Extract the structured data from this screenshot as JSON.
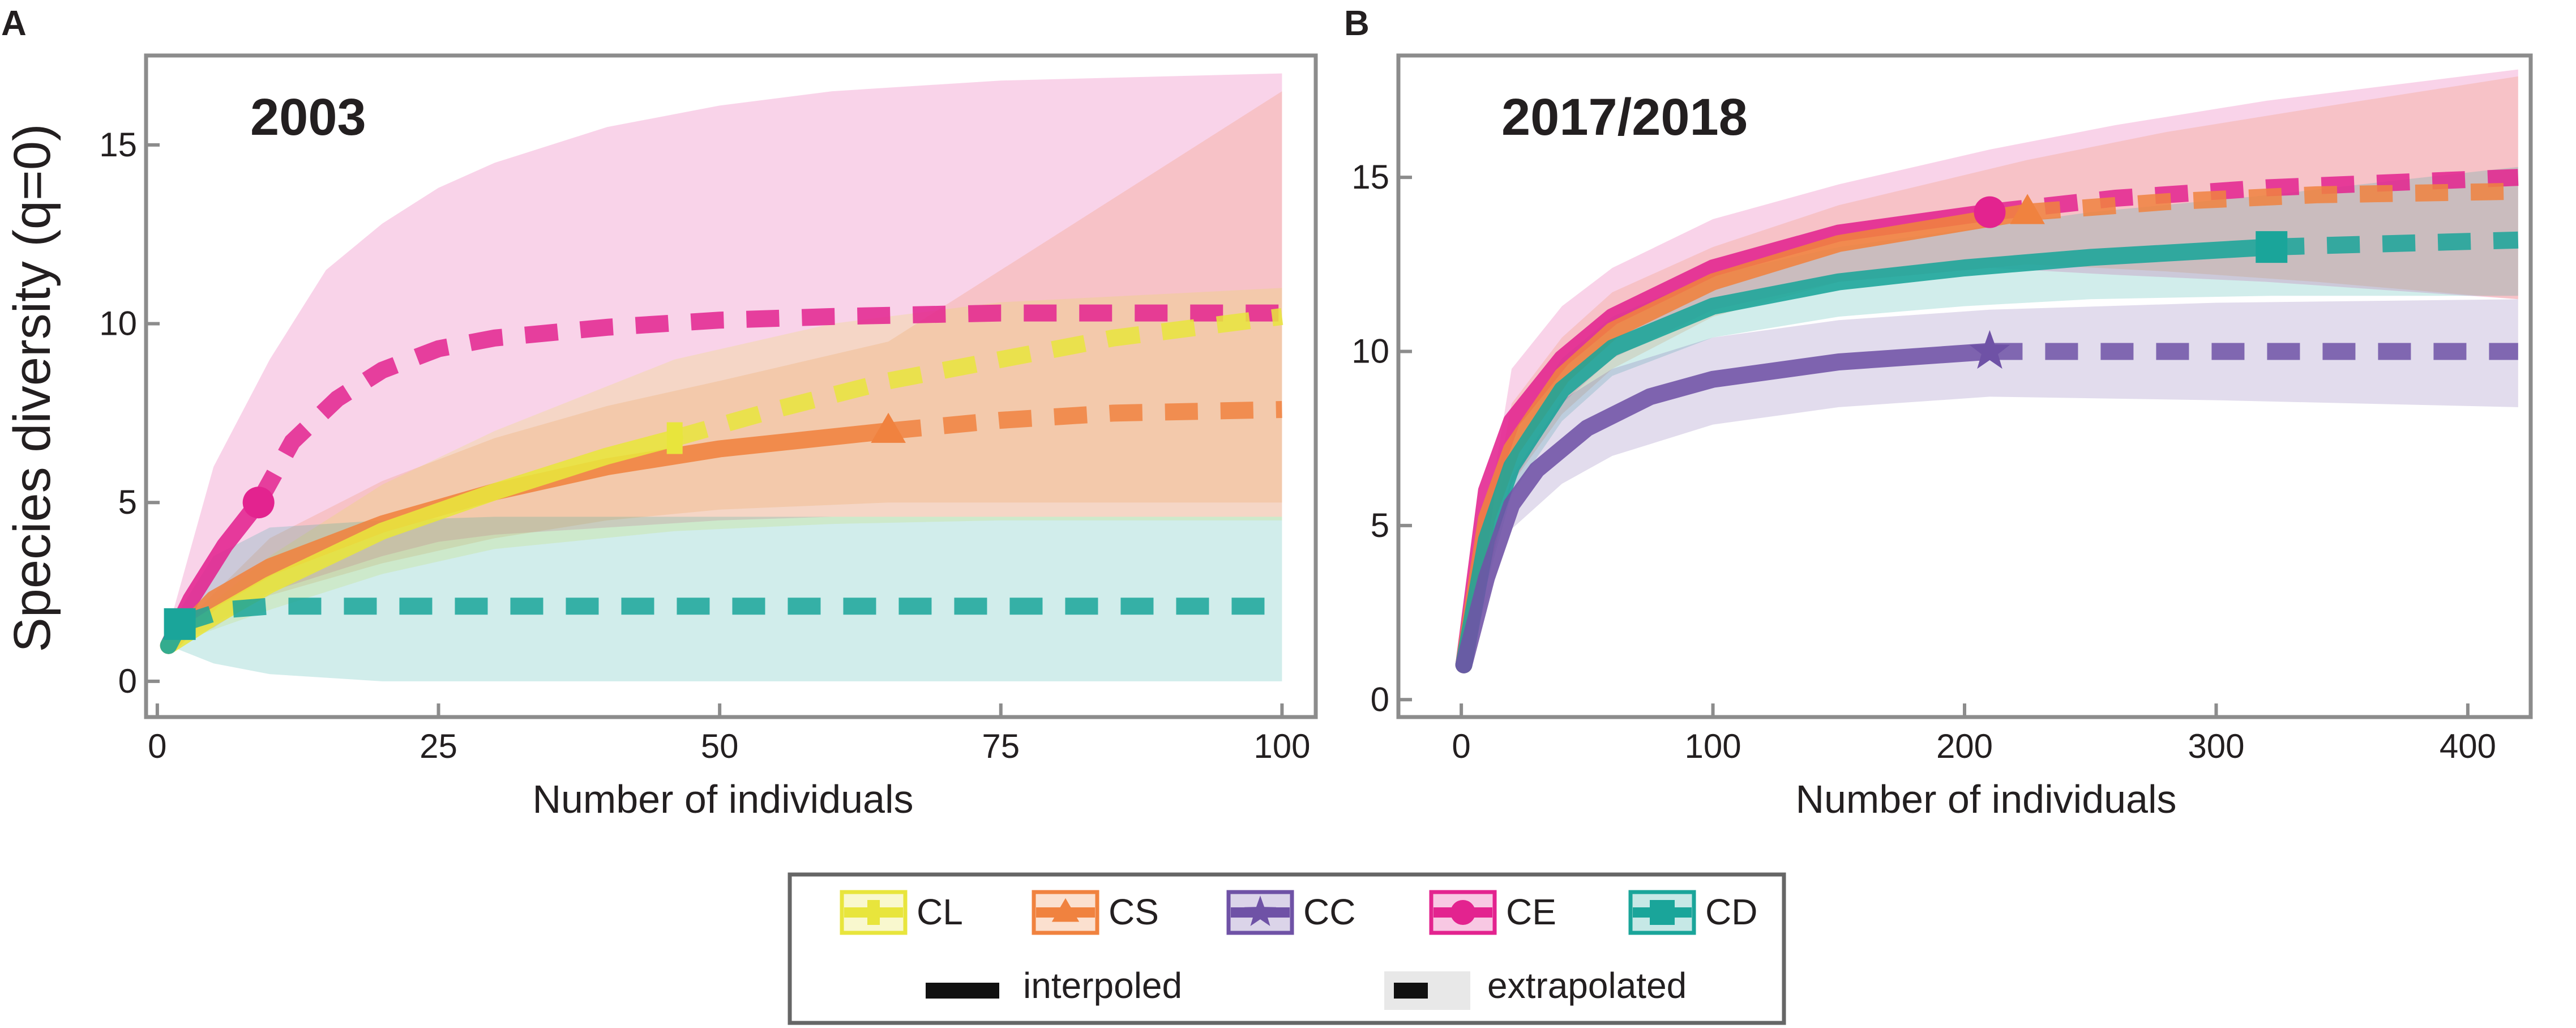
{
  "colors": {
    "CL": "#e8e53c",
    "CS": "#f0823f",
    "CC": "#6f52a6",
    "CE": "#e3238f",
    "CD": "#1aa59a",
    "frame": "#8c8c8c",
    "text": "#231f20"
  },
  "panels": {
    "A": {
      "letter": "A",
      "year": "2003"
    },
    "B": {
      "letter": "B",
      "year": "2017/2018"
    }
  },
  "axes": {
    "ylabel": "Species diversity (q=0)",
    "xlabel_A": "Number of individuals",
    "xlabel_B": "Number of individuals"
  },
  "legend": {
    "entries": [
      {
        "key": "CL",
        "label": "CL",
        "marker": "bar"
      },
      {
        "key": "CS",
        "label": "CS",
        "marker": "triangle"
      },
      {
        "key": "CC",
        "label": "CC",
        "marker": "star"
      },
      {
        "key": "CE",
        "label": "CE",
        "marker": "circle"
      },
      {
        "key": "CD",
        "label": "CD",
        "marker": "square"
      }
    ],
    "interpolated_label": "interpoled",
    "extrapolated_label": "extrapolated"
  },
  "chart_data": [
    {
      "type": "line",
      "panel": "A",
      "title": "2003",
      "xlabel": "Number of individuals",
      "ylabel": "Species diversity (q=0)",
      "xlim": [
        -1,
        103
      ],
      "ylim": [
        -1,
        17.5
      ],
      "xticks": [
        0,
        25,
        50,
        75,
        100
      ],
      "yticks": [
        0,
        5,
        10,
        15
      ],
      "series": [
        {
          "name": "CE",
          "marker": "circle",
          "ref": [
            9,
            5
          ],
          "interp": [
            [
              1,
              1.0
            ],
            [
              3,
              2.3
            ],
            [
              6,
              3.8
            ],
            [
              9,
              5.0
            ]
          ],
          "extrap": [
            [
              9,
              5.0
            ],
            [
              12,
              6.7
            ],
            [
              16,
              7.9
            ],
            [
              20,
              8.7
            ],
            [
              25,
              9.3
            ],
            [
              30,
              9.6
            ],
            [
              40,
              9.9
            ],
            [
              50,
              10.1
            ],
            [
              60,
              10.2
            ],
            [
              75,
              10.3
            ],
            [
              100,
              10.3
            ]
          ],
          "band": {
            "x": [
              1,
              5,
              10,
              15,
              20,
              25,
              30,
              40,
              50,
              60,
              75,
              100
            ],
            "lo": [
              1.0,
              1.5,
              2.5,
              3.0,
              3.5,
              3.9,
              4.1,
              4.3,
              4.5,
              4.6,
              4.6,
              4.6
            ],
            "hi": [
              1.5,
              6.0,
              9.0,
              11.5,
              12.8,
              13.8,
              14.5,
              15.5,
              16.1,
              16.5,
              16.8,
              17.0
            ]
          }
        },
        {
          "name": "CS",
          "marker": "triangle",
          "ref": [
            65,
            7
          ],
          "interp": [
            [
              1,
              1.0
            ],
            [
              5,
              2.3
            ],
            [
              10,
              3.2
            ],
            [
              20,
              4.4
            ],
            [
              30,
              5.3
            ],
            [
              40,
              6.0
            ],
            [
              50,
              6.5
            ],
            [
              65,
              7.0
            ]
          ],
          "extrap": [
            [
              65,
              7.0
            ],
            [
              75,
              7.3
            ],
            [
              85,
              7.5
            ],
            [
              100,
              7.6
            ]
          ],
          "band": {
            "x": [
              1,
              10,
              20,
              30,
              40,
              50,
              65,
              75,
              100
            ],
            "lo": [
              1.0,
              2.4,
              3.3,
              4.0,
              4.5,
              4.8,
              5.0,
              5.0,
              5.0
            ],
            "hi": [
              1.2,
              4.0,
              5.6,
              6.8,
              7.7,
              8.4,
              9.5,
              11.5,
              16.5
            ]
          }
        },
        {
          "name": "CL",
          "marker": "bar",
          "ref": [
            46,
            6.8
          ],
          "interp": [
            [
              1,
              1.0
            ],
            [
              5,
              1.8
            ],
            [
              10,
              2.7
            ],
            [
              20,
              4.2
            ],
            [
              30,
              5.3
            ],
            [
              40,
              6.3
            ],
            [
              46,
              6.8
            ]
          ],
          "extrap": [
            [
              46,
              6.8
            ],
            [
              55,
              7.6
            ],
            [
              65,
              8.4
            ],
            [
              75,
              9.0
            ],
            [
              85,
              9.6
            ],
            [
              100,
              10.2
            ]
          ],
          "band": {
            "x": [
              1,
              10,
              20,
              30,
              46,
              60,
              75,
              100
            ],
            "lo": [
              1.0,
              2.0,
              3.0,
              3.7,
              4.2,
              4.4,
              4.5,
              4.5
            ],
            "hi": [
              1.2,
              3.5,
              5.5,
              7.0,
              9.0,
              10.0,
              10.6,
              11.0
            ]
          }
        },
        {
          "name": "CD",
          "marker": "square",
          "ref": [
            2,
            1.6
          ],
          "interp": [
            [
              1,
              1.0
            ],
            [
              2,
              1.6
            ]
          ],
          "extrap": [
            [
              2,
              1.6
            ],
            [
              6,
              2.0
            ],
            [
              10,
              2.1
            ],
            [
              20,
              2.1
            ],
            [
              50,
              2.1
            ],
            [
              75,
              2.1
            ],
            [
              100,
              2.1
            ]
          ],
          "band": {
            "x": [
              1,
              5,
              10,
              20,
              30,
              50,
              75,
              100
            ],
            "lo": [
              1.0,
              0.5,
              0.2,
              0.0,
              0.0,
              0.0,
              0.0,
              0.0
            ],
            "hi": [
              1.5,
              3.5,
              4.3,
              4.5,
              4.6,
              4.6,
              4.6,
              4.6
            ]
          }
        }
      ]
    },
    {
      "type": "line",
      "panel": "B",
      "title": "2017/2018",
      "xlabel": "Number of individuals",
      "ylabel": "",
      "xlim": [
        -25,
        425
      ],
      "ylim": [
        -0.5,
        18.5
      ],
      "xticks": [
        0,
        100,
        200,
        300,
        400
      ],
      "yticks": [
        0,
        5,
        10,
        15
      ],
      "series": [
        {
          "name": "CE",
          "marker": "circle",
          "ref": [
            210,
            14
          ],
          "interp": [
            [
              1,
              1.0
            ],
            [
              10,
              6.0
            ],
            [
              20,
              8.0
            ],
            [
              40,
              9.8
            ],
            [
              60,
              11.0
            ],
            [
              100,
              12.4
            ],
            [
              150,
              13.4
            ],
            [
              210,
              14.0
            ]
          ],
          "extrap": [
            [
              210,
              14.0
            ],
            [
              260,
              14.4
            ],
            [
              320,
              14.7
            ],
            [
              420,
              15.0
            ]
          ],
          "band": {
            "x": [
              1,
              20,
              40,
              60,
              100,
              150,
              210,
              260,
              320,
              420
            ],
            "lo": [
              0.9,
              6.2,
              8.5,
              9.8,
              11.2,
              12.0,
              12.4,
              12.2,
              12.0,
              11.5
            ],
            "hi": [
              1.1,
              9.5,
              11.3,
              12.4,
              13.8,
              14.8,
              15.8,
              16.5,
              17.2,
              18.1
            ]
          }
        },
        {
          "name": "CS",
          "marker": "triangle",
          "ref": [
            225,
            14
          ],
          "interp": [
            [
              1,
              1.0
            ],
            [
              10,
              5.2
            ],
            [
              20,
              7.2
            ],
            [
              40,
              9.3
            ],
            [
              60,
              10.6
            ],
            [
              100,
              12.0
            ],
            [
              150,
              13.1
            ],
            [
              225,
              14.0
            ]
          ],
          "extrap": [
            [
              225,
              14.0
            ],
            [
              280,
              14.3
            ],
            [
              340,
              14.5
            ],
            [
              420,
              14.6
            ]
          ],
          "band": {
            "x": [
              1,
              20,
              40,
              60,
              100,
              150,
              225,
              280,
              340,
              420
            ],
            "lo": [
              0.9,
              6.2,
              8.2,
              9.5,
              11.0,
              12.0,
              12.5,
              12.3,
              12.0,
              11.5
            ],
            "hi": [
              1.1,
              8.5,
              10.4,
              11.7,
              13.0,
              14.2,
              15.5,
              16.3,
              17.0,
              17.9
            ]
          }
        },
        {
          "name": "CD",
          "marker": "square",
          "ref": [
            322,
            13
          ],
          "interp": [
            [
              1,
              1.0
            ],
            [
              10,
              4.6
            ],
            [
              20,
              6.7
            ],
            [
              40,
              8.9
            ],
            [
              60,
              10.1
            ],
            [
              100,
              11.3
            ],
            [
              150,
              12.0
            ],
            [
              200,
              12.4
            ],
            [
              250,
              12.7
            ],
            [
              322,
              13.0
            ]
          ],
          "extrap": [
            [
              322,
              13.0
            ],
            [
              370,
              13.1
            ],
            [
              420,
              13.2
            ]
          ],
          "band": {
            "x": [
              1,
              20,
              40,
              60,
              100,
              150,
              200,
              250,
              322,
              370,
              420
            ],
            "lo": [
              0.9,
              5.9,
              8.0,
              9.3,
              10.4,
              11.0,
              11.3,
              11.5,
              11.6,
              11.6,
              11.6
            ],
            "hi": [
              1.1,
              7.5,
              9.8,
              11.0,
              12.2,
              13.0,
              13.5,
              14.0,
              14.5,
              14.9,
              15.3
            ]
          }
        },
        {
          "name": "CC",
          "marker": "star",
          "ref": [
            210,
            10
          ],
          "interp": [
            [
              1,
              1.0
            ],
            [
              10,
              3.5
            ],
            [
              20,
              5.6
            ],
            [
              30,
              6.6
            ],
            [
              50,
              7.8
            ],
            [
              75,
              8.7
            ],
            [
              100,
              9.2
            ],
            [
              150,
              9.7
            ],
            [
              210,
              10.0
            ]
          ],
          "extrap": [
            [
              210,
              10.0
            ],
            [
              300,
              10.0
            ],
            [
              420,
              10.0
            ]
          ],
          "band": {
            "x": [
              1,
              20,
              40,
              60,
              100,
              150,
              210,
              300,
              420
            ],
            "lo": [
              0.9,
              4.9,
              6.2,
              7.0,
              7.9,
              8.4,
              8.7,
              8.6,
              8.4
            ],
            "hi": [
              1.1,
              6.4,
              8.6,
              9.5,
              10.4,
              10.9,
              11.2,
              11.4,
              11.5
            ]
          }
        }
      ]
    }
  ]
}
